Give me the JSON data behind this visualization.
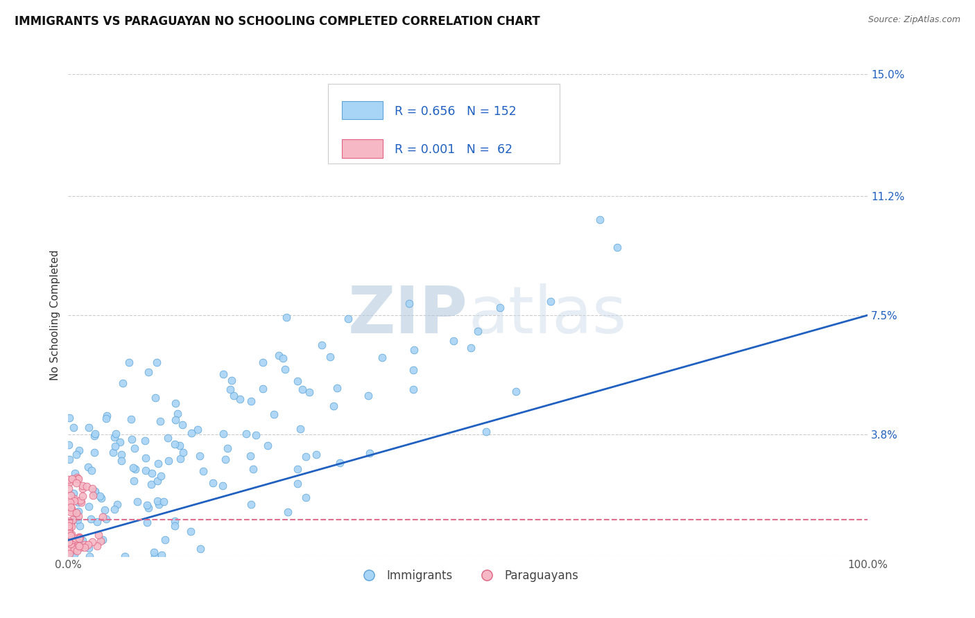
{
  "title": "IMMIGRANTS VS PARAGUAYAN NO SCHOOLING COMPLETED CORRELATION CHART",
  "source": "Source: ZipAtlas.com",
  "ylabel": "No Schooling Completed",
  "xmin": 0.0,
  "xmax": 1.0,
  "ymin": 0.0,
  "ymax": 0.15,
  "yticks": [
    0.0,
    0.038,
    0.075,
    0.112,
    0.15
  ],
  "ytick_labels": [
    "",
    "3.8%",
    "7.5%",
    "11.2%",
    "15.0%"
  ],
  "legend_blue_r": "0.656",
  "legend_blue_n": "152",
  "legend_pink_r": "0.001",
  "legend_pink_n": "62",
  "blue_dot_color": "#A8D4F5",
  "blue_edge_color": "#5BA3D9",
  "pink_dot_color": "#F5B8C4",
  "pink_edge_color": "#E06080",
  "trend_blue_color": "#2060C0",
  "trend_pink_color": "#E07090",
  "watermark_color": "#D8E8F0",
  "title_fontsize": 12,
  "label_fontsize": 11,
  "tick_fontsize": 11,
  "source_fontsize": 9
}
